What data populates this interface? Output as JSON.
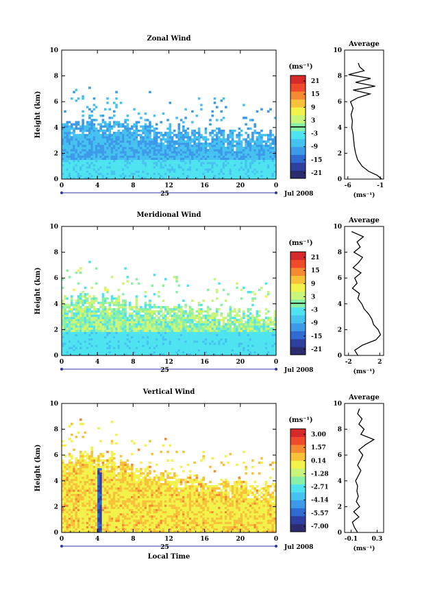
{
  "colors": {
    "scale": [
      "#2b2b6e",
      "#2f3fa0",
      "#2f6bd0",
      "#3c9ae8",
      "#46c2f0",
      "#4fe3f0",
      "#8af0a8",
      "#c8f57a",
      "#f2f24a",
      "#f7c23a",
      "#f58a32",
      "#ef4a2a",
      "#d62a2a"
    ],
    "axis": "#000000",
    "time_axis_line": "#3333aa"
  },
  "chart_data": [
    {
      "id": "zonal",
      "type": "heatmap",
      "title": "Zonal Wind",
      "xlabel": "",
      "ylabel": "Height (km)",
      "xlim": [
        0,
        24
      ],
      "ylim": [
        0,
        10
      ],
      "x_ticks": [
        "0",
        "4",
        "8",
        "12",
        "16",
        "20",
        "0"
      ],
      "y_ticks": [
        "0",
        "2",
        "4",
        "6",
        "8",
        "10"
      ],
      "date_label": "25",
      "month_label": "Jul 2008",
      "colorbar": {
        "unit_label": "(ms⁻¹)",
        "ticks": [
          "21",
          "15",
          "9",
          "3",
          "-3",
          "-9",
          "-15",
          "-21"
        ],
        "range": [
          -24,
          24
        ],
        "zero_line": true
      },
      "data_ceiling_km": [
        4.3,
        4.6,
        4.4,
        4.5,
        4.2,
        4.0,
        3.9,
        3.8,
        3.7,
        3.6,
        3.5,
        3.4
      ],
      "field_description_range": [
        -10,
        0
      ],
      "avg_profile": {
        "title": "Average",
        "xlabel": "(ms⁻¹)",
        "x_ticks": [
          "-6",
          "-1"
        ],
        "xlim": [
          -6.5,
          -0.5
        ],
        "y_ticks": [
          "0",
          "2",
          "4",
          "6",
          "8",
          "10"
        ],
        "ylim": [
          0,
          10
        ],
        "heights_km": [
          0.0,
          0.3,
          0.6,
          1.0,
          1.5,
          2.0,
          2.5,
          3.0,
          3.5,
          4.0,
          4.5,
          5.0,
          5.5,
          6.0,
          6.3,
          6.6,
          6.9,
          7.2,
          7.5,
          7.8,
          8.1,
          8.4,
          8.7,
          9.0
        ],
        "values": [
          -0.8,
          -1.5,
          -2.8,
          -3.8,
          -4.5,
          -4.8,
          -5.0,
          -5.1,
          -5.2,
          -5.4,
          -5.3,
          -5.5,
          -5.2,
          -5.6,
          -4.5,
          -2.6,
          -5.2,
          -1.8,
          -4.8,
          -2.5,
          -5.9,
          -3.5,
          -4.2,
          -4.4
        ]
      }
    },
    {
      "id": "meridional",
      "type": "heatmap",
      "title": "Meridional Wind",
      "xlabel": "",
      "ylabel": "Height (km)",
      "xlim": [
        0,
        24
      ],
      "ylim": [
        0,
        10
      ],
      "x_ticks": [
        "0",
        "4",
        "8",
        "12",
        "16",
        "20",
        "0"
      ],
      "y_ticks": [
        "0",
        "2",
        "4",
        "6",
        "8",
        "10"
      ],
      "date_label": "25",
      "month_label": "Jul 2008",
      "colorbar": {
        "unit_label": "(ms⁻¹)",
        "ticks": [
          "21",
          "15",
          "9",
          "3",
          "-3",
          "-9",
          "-15",
          "-21"
        ],
        "range": [
          -24,
          24
        ],
        "zero_line": true
      },
      "data_ceiling_km": [
        4.4,
        4.6,
        4.5,
        4.3,
        4.1,
        4.0,
        3.8,
        3.6,
        3.5,
        3.4,
        3.3,
        3.2
      ],
      "field_description_range": [
        -4,
        6
      ],
      "avg_profile": {
        "title": "Average",
        "xlabel": "(ms⁻¹)",
        "x_ticks": [
          "-2",
          "2"
        ],
        "xlim": [
          -2.5,
          2.5
        ],
        "y_ticks": [
          "0",
          "2",
          "4",
          "6",
          "8",
          "10"
        ],
        "ylim": [
          0,
          10
        ],
        "heights_km": [
          0.0,
          0.4,
          0.8,
          1.2,
          1.6,
          2.0,
          2.4,
          2.8,
          3.2,
          3.6,
          4.0,
          4.4,
          4.8,
          5.2,
          5.6,
          6.0,
          6.4,
          6.8,
          7.2,
          7.6,
          8.0,
          8.4,
          8.8,
          9.2,
          9.6
        ],
        "values": [
          -0.8,
          -1.2,
          -0.2,
          1.5,
          2.1,
          1.8,
          1.2,
          1.0,
          0.6,
          0.0,
          -0.3,
          -0.8,
          -0.6,
          -1.5,
          -0.9,
          -1.2,
          -0.4,
          -1.4,
          -0.7,
          -0.2,
          -1.3,
          -0.5,
          -0.9,
          -0.1,
          -1.6
        ]
      }
    },
    {
      "id": "vertical",
      "type": "heatmap",
      "title": "Vertical Wind",
      "xlabel": "Local Time",
      "ylabel": "Height (km)",
      "xlim": [
        0,
        24
      ],
      "ylim": [
        0,
        10
      ],
      "x_ticks": [
        "0",
        "4",
        "8",
        "12",
        "16",
        "20",
        "0"
      ],
      "y_ticks": [
        "0",
        "2",
        "4",
        "6",
        "8",
        "10"
      ],
      "date_label": "25",
      "month_label": "Jul 2008",
      "colorbar": {
        "unit_label": "(ms⁻¹)",
        "ticks": [
          "3.00",
          "1.57",
          "0.14",
          "-1.28",
          "-2.71",
          "-4.14",
          "-5.57",
          "-7.00"
        ],
        "range": [
          -7.7,
          3.7
        ],
        "zero_line": false
      },
      "data_ceiling_km": [
        5.8,
        6.2,
        6.0,
        5.5,
        5.0,
        4.6,
        4.4,
        4.2,
        4.0,
        3.9,
        3.8,
        3.7
      ],
      "field_description_range": [
        -0.4,
        0.6
      ],
      "avg_profile": {
        "title": "Average",
        "xlabel": "(ms⁻¹)",
        "x_ticks": [
          "-0.1",
          "0.3"
        ],
        "xlim": [
          -0.2,
          0.4
        ],
        "y_ticks": [
          "0",
          "2",
          "4",
          "6",
          "8",
          "10"
        ],
        "ylim": [
          0,
          10
        ],
        "heights_km": [
          0.0,
          0.4,
          0.8,
          1.2,
          1.6,
          2.0,
          2.4,
          2.8,
          3.2,
          3.6,
          4.0,
          4.4,
          4.8,
          5.2,
          5.6,
          6.0,
          6.4,
          6.8,
          7.2,
          7.6,
          8.0,
          8.4,
          8.8,
          9.2,
          9.6
        ],
        "values": [
          0.0,
          -0.05,
          -0.08,
          0.02,
          -0.06,
          0.03,
          -0.02,
          0.01,
          -0.01,
          0.0,
          -0.03,
          0.01,
          0.05,
          0.0,
          0.04,
          0.08,
          0.02,
          0.12,
          0.25,
          0.05,
          0.1,
          0.02,
          0.07,
          0.0,
          0.03
        ]
      }
    }
  ]
}
